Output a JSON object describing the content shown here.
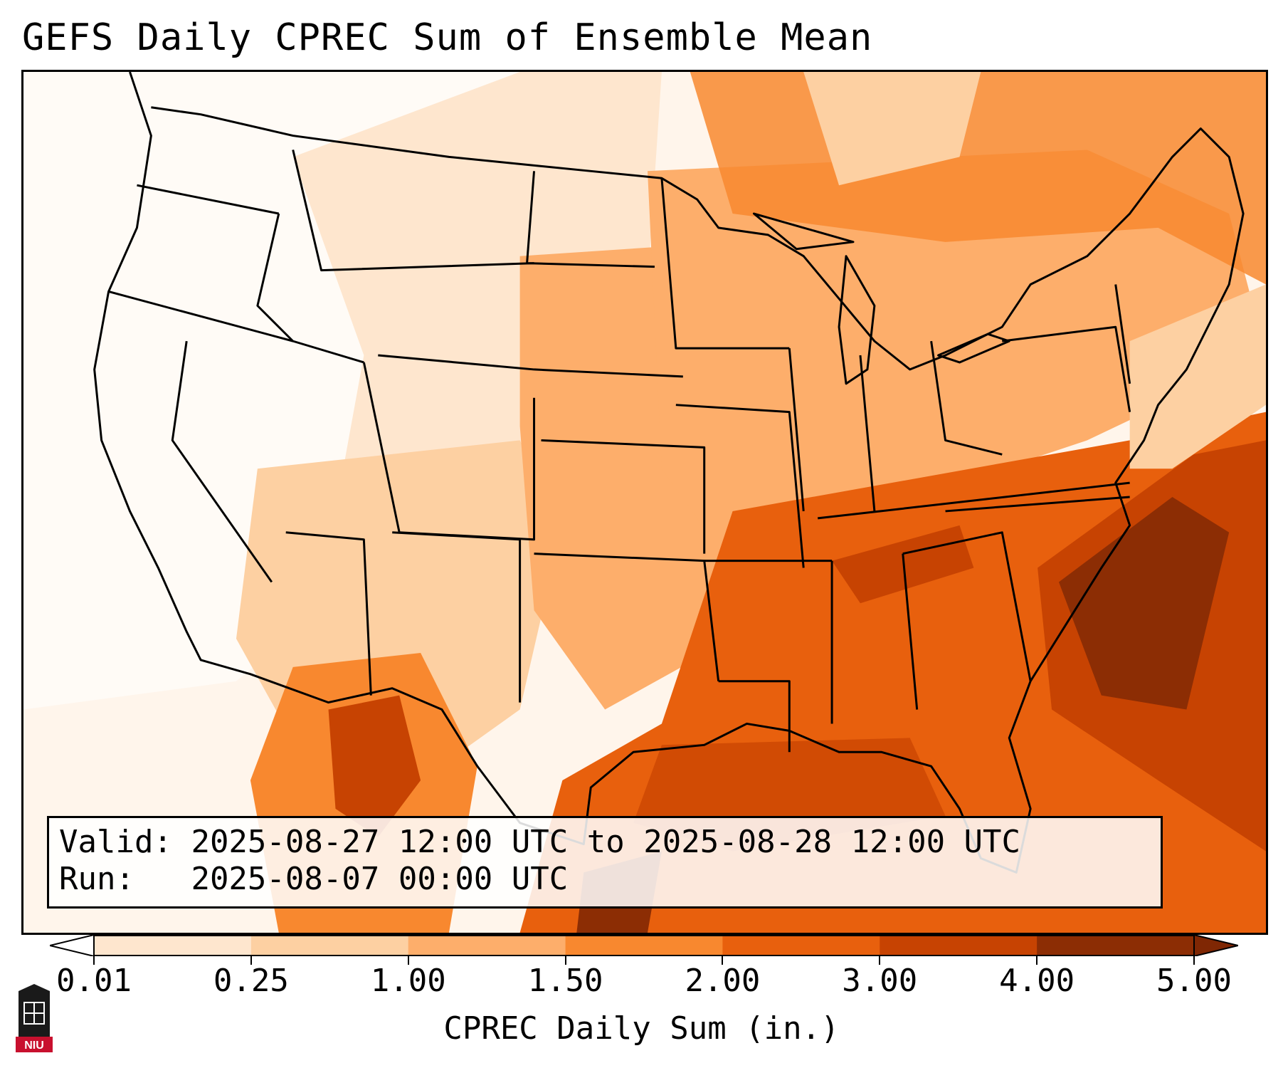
{
  "title": "GEFS Daily CPREC Sum of Ensemble Mean",
  "info": {
    "valid_label": "Valid:",
    "valid_value": "2025-08-27 12:00 UTC to 2025-08-28 12:00 UTC",
    "run_label": "Run:",
    "run_value": "2025-08-07 00:00 UTC"
  },
  "colorbar": {
    "label": "CPREC Daily Sum (in.)",
    "ticks": [
      "0.01",
      "0.25",
      "1.00",
      "1.50",
      "2.00",
      "3.00",
      "4.00",
      "5.00"
    ],
    "colors": [
      "#fff5eb",
      "#fee6ce",
      "#fdd0a2",
      "#fdae6b",
      "#f8882f",
      "#e8600d",
      "#c74302",
      "#8c2d04"
    ],
    "under_color": "#ffffff",
    "over_color": "#7f2704"
  },
  "logo": {
    "text": "NIU",
    "colors": {
      "red": "#c8102e",
      "dark": "#1a1a1a"
    }
  },
  "map": {
    "region": "Contiguous United States",
    "outline_color": "#000000"
  }
}
